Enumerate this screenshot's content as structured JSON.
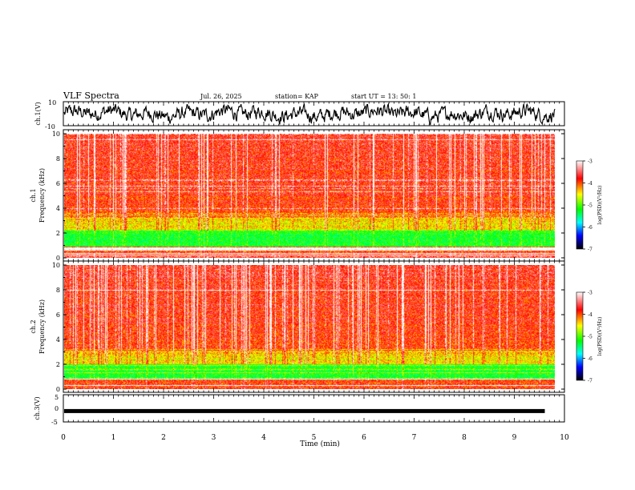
{
  "header": {
    "title": "VLF Spectra",
    "date": "Jul. 26, 2025",
    "station": "station= KAP",
    "start": "start  UT =   13: 50: 1"
  },
  "colors": {
    "waveform": "#000000",
    "scale": [
      "#ffffff",
      "#ff0000",
      "#ffff00",
      "#00ff00",
      "#00ffff",
      "#0000ff",
      "#000000"
    ]
  },
  "chart_data": [
    {
      "type": "line",
      "name": "ch1-waveform",
      "ylabel": "ch.1(V)",
      "ylim": [
        -10,
        10
      ],
      "yticks": [
        "10",
        "-10"
      ],
      "xlim": [
        0,
        10
      ],
      "note": "noisy VLF waveform, amplitude roughly -8 to 8 V"
    },
    {
      "type": "heatmap",
      "name": "ch1-spectrogram",
      "ylabel": "ch.1 Frequency (kHz)",
      "ylim": [
        0,
        10
      ],
      "yticks": [
        "0",
        "2",
        "4",
        "6",
        "8",
        "10"
      ],
      "xlim": [
        0,
        9.8
      ],
      "colorbar": {
        "label": "log(PSD)(V²/Hz)",
        "ticks": [
          "-3",
          "-4",
          "-5",
          "-6",
          "-7"
        ],
        "range": [
          -7,
          -3
        ]
      },
      "bands": [
        {
          "from_khz": 0,
          "to_khz": 0.9,
          "dominant": "mixed white/red/yellow lines"
        },
        {
          "from_khz": 0.9,
          "to_khz": 2.2,
          "dominant": "green"
        },
        {
          "from_khz": 2.2,
          "to_khz": 3.6,
          "dominant": "yellow/red"
        },
        {
          "from_khz": 3.6,
          "to_khz": 10,
          "dominant": "red with white vertical sferics"
        }
      ]
    },
    {
      "type": "heatmap",
      "name": "ch2-spectrogram",
      "ylabel": "ch.2 Frequency (kHz)",
      "ylim": [
        0,
        10
      ],
      "yticks": [
        "0",
        "2",
        "4",
        "6",
        "8",
        "10"
      ],
      "xlim": [
        0,
        9.8
      ],
      "colorbar": {
        "label": "log(PSD)(V²/Hz)",
        "ticks": [
          "-3",
          "-4",
          "-5",
          "-6",
          "-7"
        ],
        "range": [
          -7,
          -3
        ]
      },
      "bands": [
        {
          "from_khz": 0,
          "to_khz": 0.8,
          "dominant": "mixed white/red/yellow lines"
        },
        {
          "from_khz": 0.8,
          "to_khz": 2.0,
          "dominant": "green"
        },
        {
          "from_khz": 2.0,
          "to_khz": 3.2,
          "dominant": "yellow/red"
        },
        {
          "from_khz": 3.2,
          "to_khz": 10,
          "dominant": "red with white vertical sferics"
        }
      ]
    },
    {
      "type": "line",
      "name": "ch3-waveform",
      "ylabel": "ch.3(V)",
      "ylim": [
        -5,
        5
      ],
      "yticks": [
        "5",
        "0",
        "-5"
      ],
      "xlim": [
        0,
        9.8
      ],
      "note": "thick band around -1 V"
    }
  ],
  "xaxis": {
    "label": "Time (min)",
    "ticks": [
      "0",
      "1",
      "2",
      "3",
      "4",
      "5",
      "6",
      "7",
      "8",
      "9",
      "10"
    ],
    "range": [
      0,
      10
    ]
  }
}
